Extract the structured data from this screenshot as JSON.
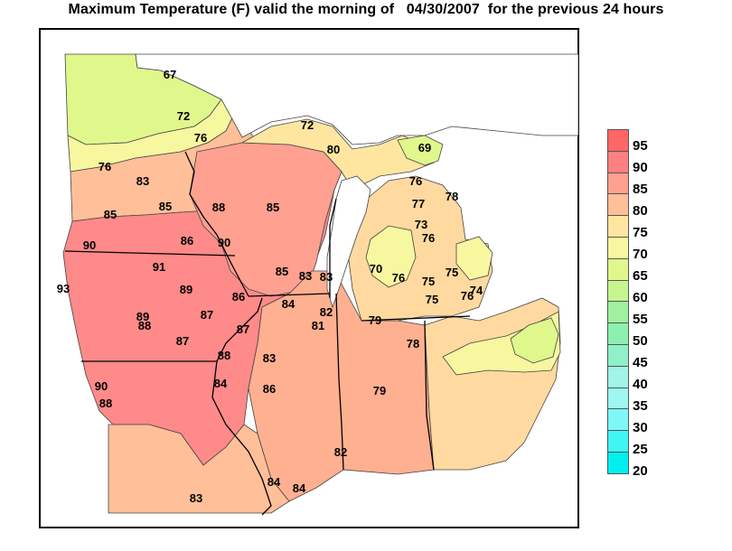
{
  "title": "Maximum Temperature (F) valid the morning of   04/30/2007  for the previous 24 hours",
  "legend": {
    "levels": [
      "95",
      "90",
      "85",
      "80",
      "75",
      "70",
      "65",
      "60",
      "55",
      "50",
      "45",
      "40",
      "35",
      "30",
      "25",
      "20"
    ],
    "colors": [
      "#ff6666",
      "#ff8080",
      "#ffa090",
      "#ffbf99",
      "#ffe6a0",
      "#f7f7a0",
      "#e0f78c",
      "#c6f590",
      "#a0f0a0",
      "#8cf0b0",
      "#90f0c8",
      "#a0f5e6",
      "#9ef7f0",
      "#80f7f7",
      "#40f5f5",
      "#00f0f0"
    ]
  },
  "stations": [
    {
      "v": "67"
    },
    {
      "v": "72"
    },
    {
      "v": "76"
    },
    {
      "v": "76"
    },
    {
      "v": "83"
    },
    {
      "v": "85"
    },
    {
      "v": "88"
    },
    {
      "v": "85"
    },
    {
      "v": "85"
    },
    {
      "v": "90"
    },
    {
      "v": "86"
    },
    {
      "v": "90"
    },
    {
      "v": "91"
    },
    {
      "v": "93"
    },
    {
      "v": "89"
    },
    {
      "v": "86"
    },
    {
      "v": "85"
    },
    {
      "v": "83"
    },
    {
      "v": "83"
    },
    {
      "v": "84"
    },
    {
      "v": "82"
    },
    {
      "v": "81"
    },
    {
      "v": "89"
    },
    {
      "v": "88"
    },
    {
      "v": "87"
    },
    {
      "v": "87"
    },
    {
      "v": "87"
    },
    {
      "v": "88"
    },
    {
      "v": "83"
    },
    {
      "v": "90"
    },
    {
      "v": "88"
    },
    {
      "v": "84"
    },
    {
      "v": "86"
    },
    {
      "v": "72"
    },
    {
      "v": "80"
    },
    {
      "v": "69"
    },
    {
      "v": "76"
    },
    {
      "v": "77"
    },
    {
      "v": "78"
    },
    {
      "v": "73"
    },
    {
      "v": "76"
    },
    {
      "v": "70"
    },
    {
      "v": "76"
    },
    {
      "v": "75"
    },
    {
      "v": "75"
    },
    {
      "v": "75"
    },
    {
      "v": "76"
    },
    {
      "v": "74"
    },
    {
      "v": "79"
    },
    {
      "v": "78"
    },
    {
      "v": "79"
    },
    {
      "v": "82"
    },
    {
      "v": "84"
    },
    {
      "v": "84"
    },
    {
      "v": "83"
    }
  ]
}
